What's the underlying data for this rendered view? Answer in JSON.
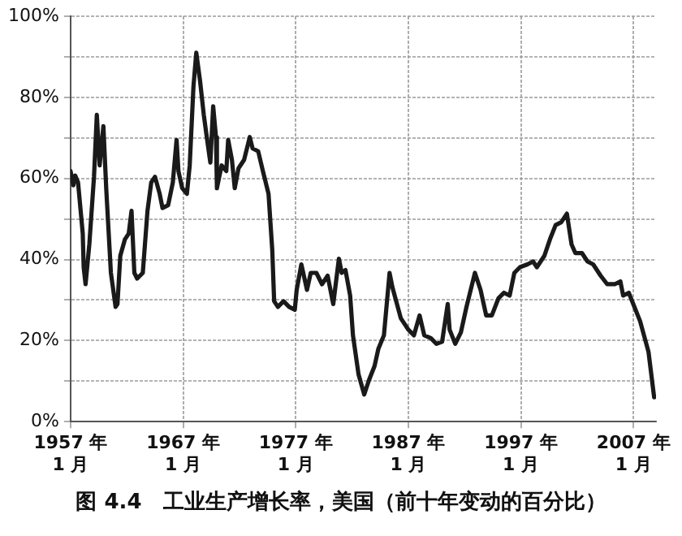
{
  "chart_data": {
    "type": "line",
    "title": "图 4.4　工业生产增长率，美国（前十年变动的百分比）",
    "xlim": [
      "1957-01",
      "2009-01"
    ],
    "xticks": [
      {
        "value": "1957-01",
        "label": "1957 年\n1 月"
      },
      {
        "value": "1967-01",
        "label": "1967 年\n1 月"
      },
      {
        "value": "1977-01",
        "label": "1977 年\n1 月"
      },
      {
        "value": "1987-01",
        "label": "1987 年\n1 月"
      },
      {
        "value": "1997-01",
        "label": "1997 年\n1 月"
      },
      {
        "value": "2007-01",
        "label": "2007 年\n1 月"
      }
    ],
    "ylim": [
      0,
      100
    ],
    "yticks": [
      {
        "value": 0,
        "label": "0%"
      },
      {
        "value": 10,
        "label": null
      },
      {
        "value": 20,
        "label": "20%"
      },
      {
        "value": 30,
        "label": null
      },
      {
        "value": 40,
        "label": "40%"
      },
      {
        "value": 50,
        "label": null
      },
      {
        "value": 60,
        "label": "60%"
      },
      {
        "value": 70,
        "label": null
      },
      {
        "value": 80,
        "label": "80%"
      },
      {
        "value": 90,
        "label": null
      },
      {
        "value": 100,
        "label": "100%"
      }
    ],
    "grid": true,
    "legend": false,
    "marker": "none",
    "line_style": "solid",
    "series": [
      {
        "color": "#1a1a1a",
        "x": [
          "1957-01",
          "1957-04",
          "1957-06",
          "1957-09",
          "1958-02",
          "1958-03",
          "1958-05",
          "1958-09",
          "1959-02",
          "1959-05",
          "1959-08",
          "1959-12",
          "1960-03",
          "1960-08",
          "1961-01",
          "1961-03",
          "1961-06",
          "1961-11",
          "1962-03",
          "1962-06",
          "1962-09",
          "1962-12",
          "1963-06",
          "1963-11",
          "1964-03",
          "1964-07",
          "1964-12",
          "1965-03",
          "1965-09",
          "1966-02",
          "1966-06",
          "1966-08",
          "1966-12",
          "1967-05",
          "1967-08",
          "1967-12",
          "1968-03",
          "1968-07",
          "1968-11",
          "1969-03",
          "1969-06",
          "1969-09",
          "1969-12",
          "1970-01",
          "1970-06",
          "1970-11",
          "1971-01",
          "1971-05",
          "1971-08",
          "1971-12",
          "1972-06",
          "1972-12",
          "1973-03",
          "1973-09",
          "1974-02",
          "1974-08",
          "1974-12",
          "1975-02",
          "1975-06",
          "1975-12",
          "1976-06",
          "1976-12",
          "1977-02",
          "1977-07",
          "1978-01",
          "1978-05",
          "1978-11",
          "1979-05",
          "1979-11",
          "1980-05",
          "1980-11",
          "1981-02",
          "1981-06",
          "1981-11",
          "1982-02",
          "1982-08",
          "1983-02",
          "1983-07",
          "1984-01",
          "1984-05",
          "1984-11",
          "1985-05",
          "1985-08",
          "1986-05",
          "1987-01",
          "1987-07",
          "1988-01",
          "1988-06",
          "1989-01",
          "1989-07",
          "1990-01",
          "1990-07",
          "1990-09",
          "1991-03",
          "1991-09",
          "1992-03",
          "1992-12",
          "1993-06",
          "1993-12",
          "1994-06",
          "1995-01",
          "1995-07",
          "1996-01",
          "1996-06",
          "1996-12",
          "1997-08",
          "1998-02",
          "1998-06",
          "1999-02",
          "1999-08",
          "2000-02",
          "2000-08",
          "2001-02",
          "2001-07",
          "2001-11",
          "2002-06",
          "2002-12",
          "2003-06",
          "2004-02",
          "2004-09",
          "2005-05",
          "2005-11",
          "2006-02",
          "2006-08",
          "2007-02",
          "2007-08",
          "2008-01",
          "2008-05",
          "2008-11"
        ],
        "values": [
          61.8,
          58.3,
          60.7,
          59,
          46.4,
          38,
          33.9,
          43.7,
          60.4,
          75.7,
          63.2,
          72.9,
          57.6,
          36.7,
          28.3,
          29,
          40.9,
          45,
          46.4,
          52,
          36.7,
          35.3,
          36.7,
          52,
          59,
          60.4,
          56.2,
          52.7,
          53.4,
          59,
          69.5,
          61.8,
          57.6,
          56.2,
          63.2,
          82.7,
          91,
          84.1,
          75.7,
          68.8,
          63.9,
          77.8,
          70.2,
          57.6,
          63.2,
          61.8,
          69.5,
          64.6,
          57.6,
          62.5,
          64.6,
          70.2,
          67.4,
          66.7,
          61.8,
          56.2,
          42.3,
          29.7,
          28.3,
          29.7,
          28.3,
          27.6,
          32.5,
          38.8,
          32.5,
          36.7,
          36.7,
          33.9,
          36,
          29,
          40.2,
          36.7,
          37.4,
          31.1,
          21.3,
          11.6,
          6.7,
          10.2,
          13.7,
          17.9,
          21.3,
          36.7,
          33.2,
          25.5,
          22.7,
          21.3,
          26.2,
          21.3,
          20.6,
          19.2,
          19.7,
          29,
          22.7,
          19.2,
          22,
          28.3,
          36.7,
          32.5,
          26.2,
          26.2,
          30.4,
          31.8,
          31.1,
          36.7,
          38.1,
          38.8,
          39.5,
          38.1,
          40.9,
          45,
          48.5,
          49.2,
          51.3,
          43.7,
          41.6,
          41.6,
          39.5,
          38.8,
          36,
          33.9,
          33.9,
          34.6,
          31.1,
          31.8,
          28.3,
          24.8,
          20.6,
          17.2,
          6
        ]
      }
    ]
  }
}
